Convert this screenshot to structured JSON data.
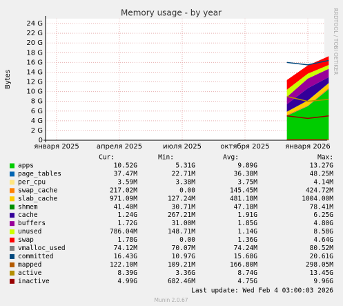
{
  "chart_data": {
    "type": "area",
    "title": "Memory usage - by year",
    "y_label": "Bytes",
    "watermark": "RRDTOOL / TOBI OETIKER",
    "x": [
      "2025-12",
      "2026-01",
      "2026-02"
    ],
    "xticks": [
      {
        "value": "2025-01",
        "label": "января 2025"
      },
      {
        "value": "2025-04",
        "label": "апреля 2025"
      },
      {
        "value": "2025-07",
        "label": "июля 2025"
      },
      {
        "value": "2025-10",
        "label": "октября 2025"
      },
      {
        "value": "2026-01",
        "label": "января 2026"
      }
    ],
    "ylim": [
      0,
      25
    ],
    "yticks": [
      0,
      {
        "value": 2,
        "label": "2 G"
      },
      {
        "value": 4,
        "label": "4 G"
      },
      {
        "value": 6,
        "label": "6 G"
      },
      {
        "value": 8,
        "label": "8 G"
      },
      {
        "value": 10,
        "label": "10 G"
      },
      {
        "value": 12,
        "label": "12 G"
      },
      {
        "value": 14,
        "label": "14 G"
      },
      {
        "value": 16,
        "label": "16 G"
      },
      {
        "value": 18,
        "label": "18 G"
      },
      {
        "value": 20,
        "label": "20 G"
      },
      {
        "value": 22,
        "label": "22 G"
      },
      {
        "value": 24,
        "label": "24 G"
      }
    ],
    "grid": true,
    "legend_headers": [
      "Cur:",
      "Min:",
      "Avg:",
      "Max:"
    ],
    "series": [
      {
        "name": "apps",
        "color": "#00cc00",
        "style": "area",
        "values": [
          5,
          7,
          10.5
        ],
        "stats": [
          "10.52G",
          "5.31G",
          "9.89G",
          "13.27G"
        ]
      },
      {
        "name": "page_tables",
        "color": "#0066b3",
        "style": "area",
        "values": [
          0.04,
          0.04,
          0.04
        ],
        "stats": [
          "37.47M",
          "22.71M",
          "36.38M",
          "48.25M"
        ]
      },
      {
        "name": "per_cpu",
        "color": "#ffe680",
        "style": "area",
        "values": [
          0.004,
          0.004,
          0.004
        ],
        "stats": [
          "3.59M",
          "3.38M",
          "3.75M",
          "4.14M"
        ]
      },
      {
        "name": "swap_cache",
        "color": "#ff8000",
        "style": "area",
        "values": [
          0.2,
          0.1,
          0.2
        ],
        "stats": [
          "217.02M",
          "0.00",
          "145.45M",
          "424.72M"
        ]
      },
      {
        "name": "slab_cache",
        "color": "#ffcc00",
        "style": "area",
        "values": [
          0.6,
          1,
          1
        ],
        "stats": [
          "971.09M",
          "127.24M",
          "481.18M",
          "1004.00M"
        ]
      },
      {
        "name": "shmem",
        "color": "#008f00",
        "style": "area",
        "values": [
          0.04,
          0.04,
          0.04
        ],
        "stats": [
          "41.40M",
          "30.71M",
          "47.18M",
          "78.41M"
        ]
      },
      {
        "name": "cache",
        "color": "#330099",
        "style": "area",
        "values": [
          1.5,
          2.5,
          1.2
        ],
        "stats": [
          "1.24G",
          "267.21M",
          "1.91G",
          "6.25G"
        ]
      },
      {
        "name": "buffers",
        "color": "#990099",
        "style": "area",
        "values": [
          1.5,
          2,
          1.7
        ],
        "stats": [
          "1.72G",
          "31.00M",
          "1.85G",
          "4.80G"
        ]
      },
      {
        "name": "unused",
        "color": "#ccff00",
        "style": "area",
        "values": [
          1.5,
          1,
          0.8
        ],
        "stats": [
          "786.04M",
          "148.71M",
          "1.14G",
          "8.58G"
        ]
      },
      {
        "name": "swap",
        "color": "#ff0000",
        "style": "area",
        "values": [
          2,
          1.7,
          1.8
        ],
        "stats": [
          "1.78G",
          "0.00",
          "1.36G",
          "4.64G"
        ]
      },
      {
        "name": "vmalloc_used",
        "color": "#808080",
        "style": "line",
        "values": [
          0.07,
          0.07,
          0.07
        ],
        "stats": [
          "74.12M",
          "70.07M",
          "74.24M",
          "80.52M"
        ]
      },
      {
        "name": "committed",
        "color": "#00487d",
        "style": "line",
        "values": [
          16,
          15.5,
          16.4
        ],
        "stats": [
          "16.43G",
          "10.97G",
          "15.68G",
          "20.61G"
        ]
      },
      {
        "name": "mapped",
        "color": "#b35a00",
        "style": "line",
        "values": [
          0.15,
          0.17,
          0.12
        ],
        "stats": [
          "122.10M",
          "109.21M",
          "166.80M",
          "298.05M"
        ]
      },
      {
        "name": "active",
        "color": "#b38f00",
        "style": "line",
        "values": [
          9,
          8,
          8.4
        ],
        "stats": [
          "8.39G",
          "3.36G",
          "8.74G",
          "13.45G"
        ]
      },
      {
        "name": "inactive",
        "color": "#990000",
        "style": "line",
        "values": [
          5,
          4.5,
          5
        ],
        "stats": [
          "4.99G",
          "682.46M",
          "4.75G",
          "9.96G"
        ]
      }
    ]
  },
  "footer": {
    "last_update": "Last update: Wed Feb  4 03:00:03 2026",
    "version": "Munin 2.0.67"
  }
}
